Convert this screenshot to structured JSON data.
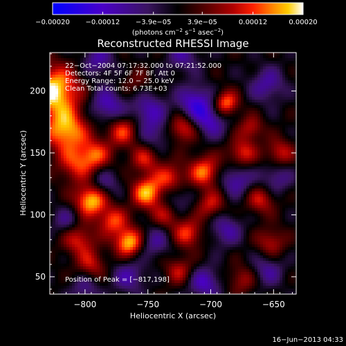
{
  "chart_data": {
    "type": "heatmap",
    "title": "Reconstructed RHESSI Image",
    "xlabel": "Heliocentric X (arcsec)",
    "ylabel": "Heliocentric Y (arcsec)",
    "xlim": [
      -828,
      -632
    ],
    "ylim": [
      36,
      231
    ],
    "x_ticks": [
      -800,
      -750,
      -700,
      -650
    ],
    "y_ticks": [
      50,
      100,
      150,
      200
    ],
    "x_tick_labels": [
      "−800",
      "−750",
      "−700",
      "−650"
    ],
    "y_tick_labels": [
      "50",
      "100",
      "150",
      "200"
    ],
    "colorbar": {
      "range": [
        -0.0002,
        0.0002
      ],
      "ticks": [
        -0.0002,
        -0.00012,
        -3.9e-05,
        3.9e-05,
        0.00012,
        0.0002
      ],
      "tick_labels": [
        "−0.00020",
        "−0.00012",
        "−3.9e−05",
        "3.9e−05",
        "0.00012",
        "0.00020"
      ],
      "units_main": "(photons cm",
      "units_exp1": "−2",
      "units_mid": " s",
      "units_exp2": "−1",
      "units_end": " asec",
      "units_exp3": "−2",
      "units_close": ")"
    },
    "blobs": [
      {
        "x": -825,
        "y": 200,
        "v": 1.0,
        "s": 14
      },
      {
        "x": -815,
        "y": 168,
        "v": 0.85,
        "s": 12
      },
      {
        "x": -808,
        "y": 140,
        "v": 0.5,
        "s": 10
      },
      {
        "x": -795,
        "y": 112,
        "v": 0.95,
        "s": 9
      },
      {
        "x": -792,
        "y": 148,
        "v": 0.6,
        "s": 9
      },
      {
        "x": -805,
        "y": 80,
        "v": 0.55,
        "s": 9
      },
      {
        "x": -795,
        "y": 60,
        "v": 0.45,
        "s": 8
      },
      {
        "x": -778,
        "y": 95,
        "v": 0.6,
        "s": 8
      },
      {
        "x": -765,
        "y": 78,
        "v": 0.9,
        "s": 8
      },
      {
        "x": -770,
        "y": 168,
        "v": 0.6,
        "s": 9
      },
      {
        "x": -752,
        "y": 145,
        "v": 0.5,
        "s": 8
      },
      {
        "x": -750,
        "y": 118,
        "v": 0.85,
        "s": 9
      },
      {
        "x": -735,
        "y": 100,
        "v": 0.45,
        "s": 8
      },
      {
        "x": -732,
        "y": 130,
        "v": 0.55,
        "s": 8
      },
      {
        "x": -722,
        "y": 170,
        "v": 0.6,
        "s": 8
      },
      {
        "x": -718,
        "y": 85,
        "v": 0.6,
        "s": 8
      },
      {
        "x": -705,
        "y": 135,
        "v": 0.7,
        "s": 9
      },
      {
        "x": -700,
        "y": 108,
        "v": 0.5,
        "s": 8
      },
      {
        "x": -688,
        "y": 190,
        "v": 0.75,
        "s": 7
      },
      {
        "x": -675,
        "y": 150,
        "v": 0.55,
        "s": 8
      },
      {
        "x": -668,
        "y": 170,
        "v": 0.45,
        "s": 7
      },
      {
        "x": -660,
        "y": 112,
        "v": 0.5,
        "s": 8
      },
      {
        "x": -645,
        "y": 150,
        "v": 0.5,
        "s": 8
      },
      {
        "x": -652,
        "y": 78,
        "v": 0.45,
        "s": 8
      },
      {
        "x": -725,
        "y": 55,
        "v": 0.45,
        "s": 8
      },
      {
        "x": -675,
        "y": 48,
        "v": 0.4,
        "s": 8
      },
      {
        "x": -760,
        "y": 205,
        "v": 0.25,
        "s": 9
      },
      {
        "x": -782,
        "y": 188,
        "v": -0.55,
        "s": 10
      },
      {
        "x": -750,
        "y": 185,
        "v": -0.5,
        "s": 10
      },
      {
        "x": -712,
        "y": 190,
        "v": -0.65,
        "s": 10
      },
      {
        "x": -700,
        "y": 175,
        "v": -0.5,
        "s": 9
      },
      {
        "x": -745,
        "y": 165,
        "v": -0.35,
        "s": 9
      },
      {
        "x": -785,
        "y": 125,
        "v": -0.4,
        "s": 9
      },
      {
        "x": -728,
        "y": 112,
        "v": -0.35,
        "s": 9
      },
      {
        "x": -680,
        "y": 128,
        "v": -0.5,
        "s": 9
      },
      {
        "x": -655,
        "y": 205,
        "v": -0.45,
        "s": 10
      },
      {
        "x": -648,
        "y": 130,
        "v": -0.4,
        "s": 9
      },
      {
        "x": -688,
        "y": 88,
        "v": -0.45,
        "s": 9
      },
      {
        "x": -745,
        "y": 78,
        "v": -0.4,
        "s": 9
      },
      {
        "x": -815,
        "y": 95,
        "v": -0.35,
        "s": 8
      },
      {
        "x": -765,
        "y": 50,
        "v": -0.45,
        "s": 9
      },
      {
        "x": -705,
        "y": 45,
        "v": -0.55,
        "s": 9
      },
      {
        "x": -655,
        "y": 55,
        "v": -0.4,
        "s": 9
      },
      {
        "x": -790,
        "y": 225,
        "v": -0.45,
        "s": 9
      },
      {
        "x": -722,
        "y": 228,
        "v": -0.4,
        "s": 9
      },
      {
        "x": -800,
        "y": 40,
        "v": -0.35,
        "s": 8
      }
    ]
  },
  "annotations": {
    "time_range": "22−Oct−2004 07:17:32.000 to 07:21:52.000",
    "detectors": "Detectors: 4F 5F 6F 7F 8F, Att 0",
    "energy_range": "Energy Range: 12.0 − 25.0 keV",
    "counts": "Clean    Total counts: 6.73E+03",
    "peak": "Position of Peak = [−817,198]"
  },
  "footer": {
    "date_stamp": "16−Jun−2013 04:33"
  },
  "colors": {
    "background": "#000000",
    "text": "#ffffff"
  }
}
